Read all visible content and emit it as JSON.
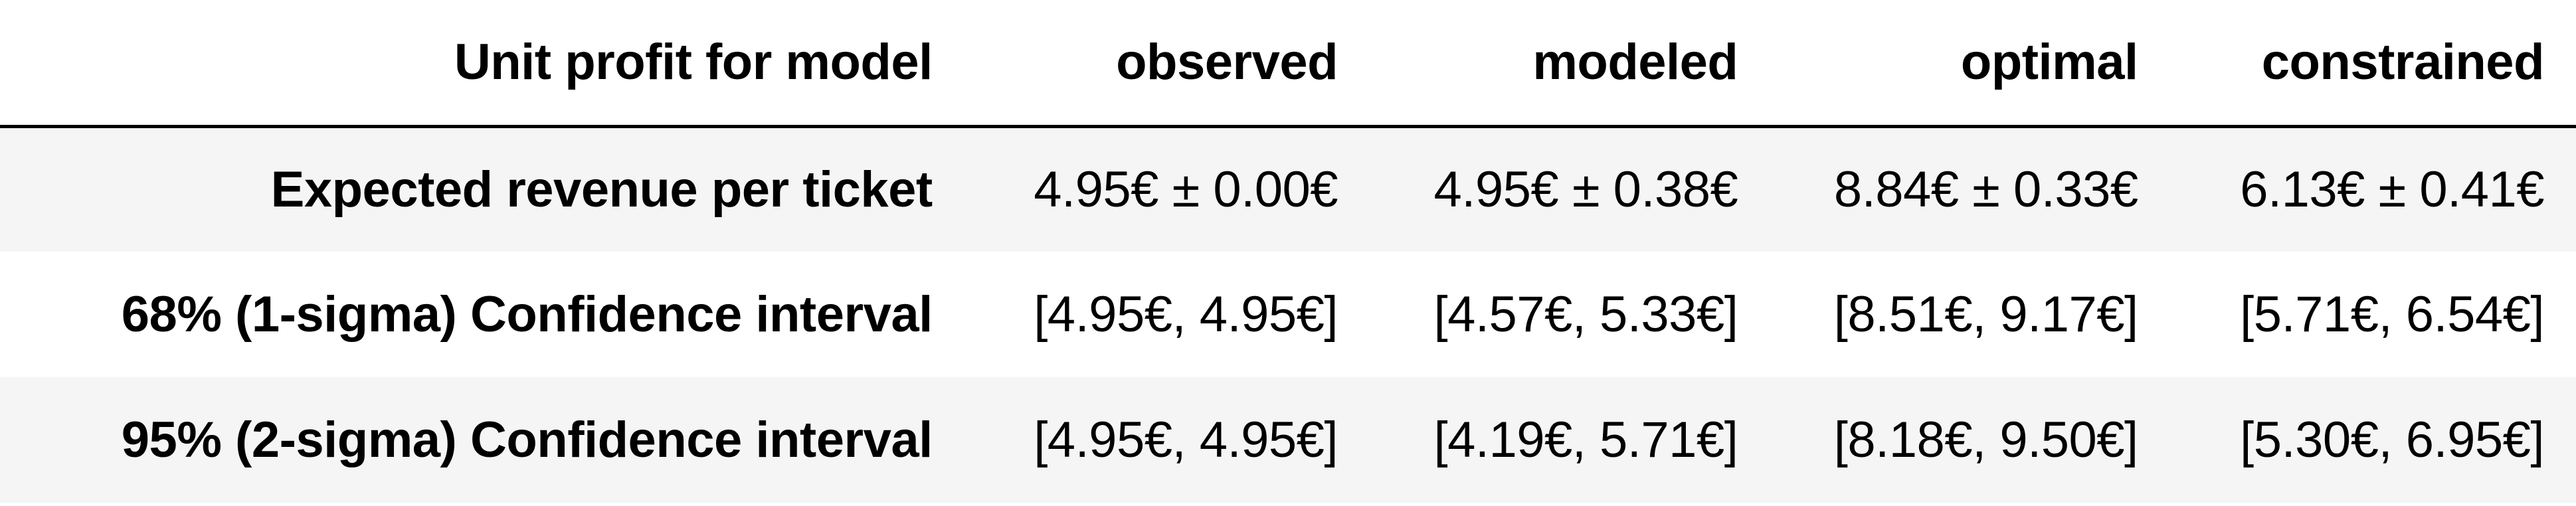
{
  "table": {
    "header": {
      "corner": "Unit profit for model",
      "columns": [
        "observed",
        "modeled",
        "optimal",
        "constrained"
      ]
    },
    "rows": [
      {
        "label": "Expected revenue per ticket",
        "cells": [
          "4.95€ ± 0.00€",
          "4.95€ ± 0.38€",
          "8.84€ ± 0.33€",
          "6.13€ ± 0.41€"
        ]
      },
      {
        "label": "68% (1-sigma) Confidence interval",
        "cells": [
          "[4.95€, 4.95€]",
          "[4.57€, 5.33€]",
          "[8.51€, 9.17€]",
          "[5.71€, 6.54€]"
        ]
      },
      {
        "label": "95% (2-sigma) Confidence interval",
        "cells": [
          "[4.95€, 4.95€]",
          "[4.19€, 5.71€]",
          "[8.18€, 9.50€]",
          "[5.30€, 6.95€]"
        ]
      }
    ]
  }
}
